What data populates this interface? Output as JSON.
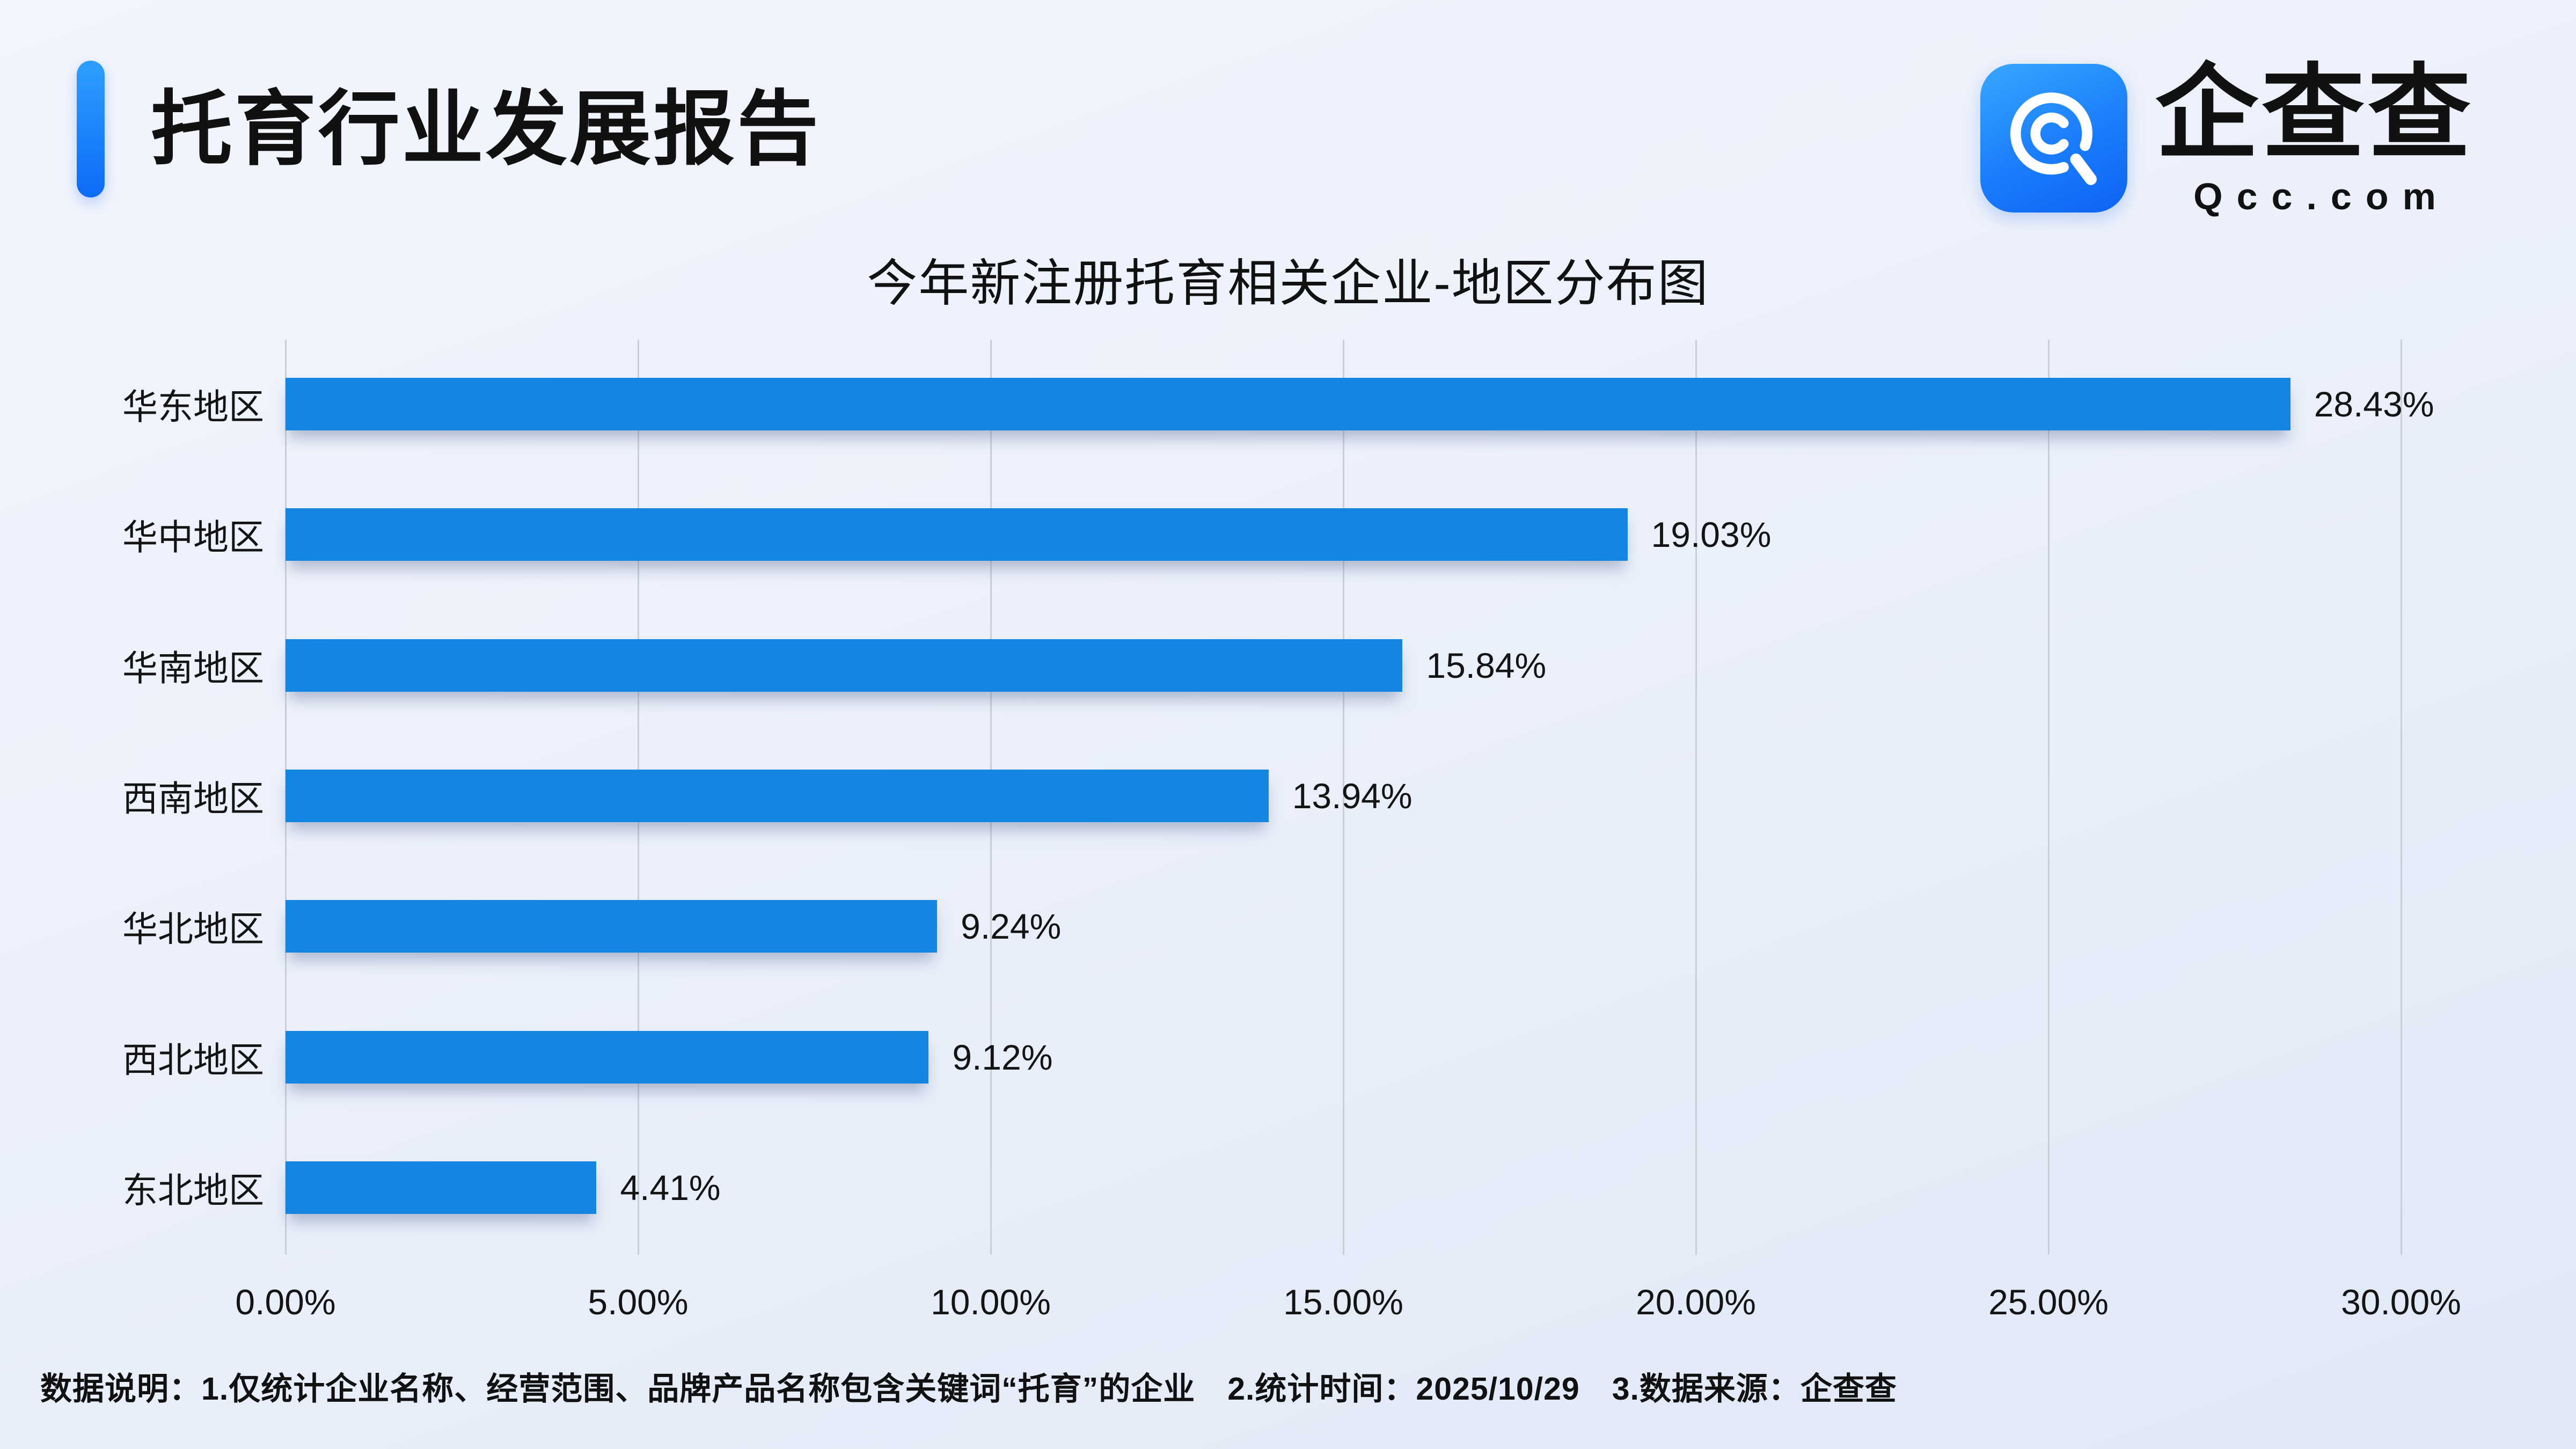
{
  "header": {
    "title": "托育行业发展报告"
  },
  "brand": {
    "icon": "qcc-magnifier-icon",
    "name": "企查查",
    "domain": "Qcc.com"
  },
  "chart_data": {
    "type": "bar",
    "orientation": "horizontal",
    "title": "今年新注册托育相关企业-地区分布图",
    "categories": [
      "华东地区",
      "华中地区",
      "华南地区",
      "西南地区",
      "华北地区",
      "西北地区",
      "东北地区"
    ],
    "values": [
      28.43,
      19.03,
      15.84,
      13.94,
      9.24,
      9.12,
      4.41
    ],
    "value_labels": [
      "28.43%",
      "19.03%",
      "15.84%",
      "13.94%",
      "9.24%",
      "9.12%",
      "4.41%"
    ],
    "x_ticks": [
      "0.00%",
      "5.00%",
      "10.00%",
      "15.00%",
      "20.00%",
      "25.00%",
      "30.00%"
    ],
    "xlim": [
      0,
      30
    ],
    "grid": true,
    "legend": false,
    "bar_color": "#1585E2",
    "gridline_color": "#c9ced8"
  },
  "footer": {
    "note": "数据说明：1.仅统计企业名称、经营范围、品牌产品名称包含关键词“托育”的企业　2.统计时间：2025/10/29　3.数据来源：企查查"
  }
}
